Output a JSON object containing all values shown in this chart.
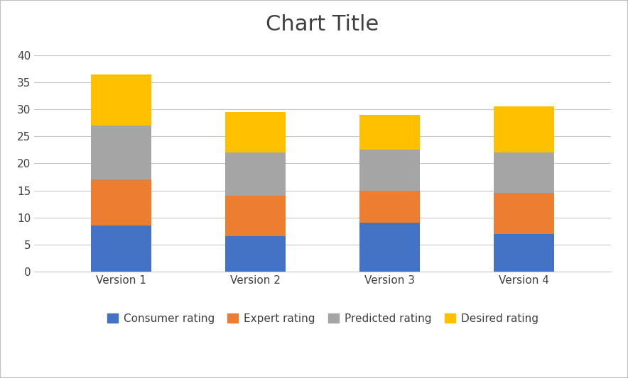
{
  "categories": [
    "Version 1",
    "Version 2",
    "Version 3",
    "Version 4"
  ],
  "consumer_rating": [
    8.5,
    6.5,
    9.0,
    7.0
  ],
  "expert_rating": [
    8.5,
    7.5,
    6.0,
    7.5
  ],
  "predicted_rating": [
    10.0,
    8.0,
    7.5,
    7.5
  ],
  "desired_rating": [
    9.5,
    7.5,
    6.5,
    8.5
  ],
  "colors": {
    "consumer": "#4472C4",
    "expert": "#ED7D31",
    "predicted": "#A5A5A5",
    "desired": "#FFC000"
  },
  "title": "Chart Title",
  "title_fontsize": 22,
  "ylim": [
    0,
    42
  ],
  "yticks": [
    0,
    5,
    10,
    15,
    20,
    25,
    30,
    35,
    40
  ],
  "legend_labels": [
    "Consumer rating",
    "Expert rating",
    "Predicted rating",
    "Desired rating"
  ],
  "bar_width": 0.45,
  "background_color": "#FFFFFF",
  "plot_area_color": "#FFFFFF",
  "grid_color": "#C8C8C8",
  "tick_fontsize": 11,
  "legend_fontsize": 11,
  "border_color": "#BFBFBF"
}
